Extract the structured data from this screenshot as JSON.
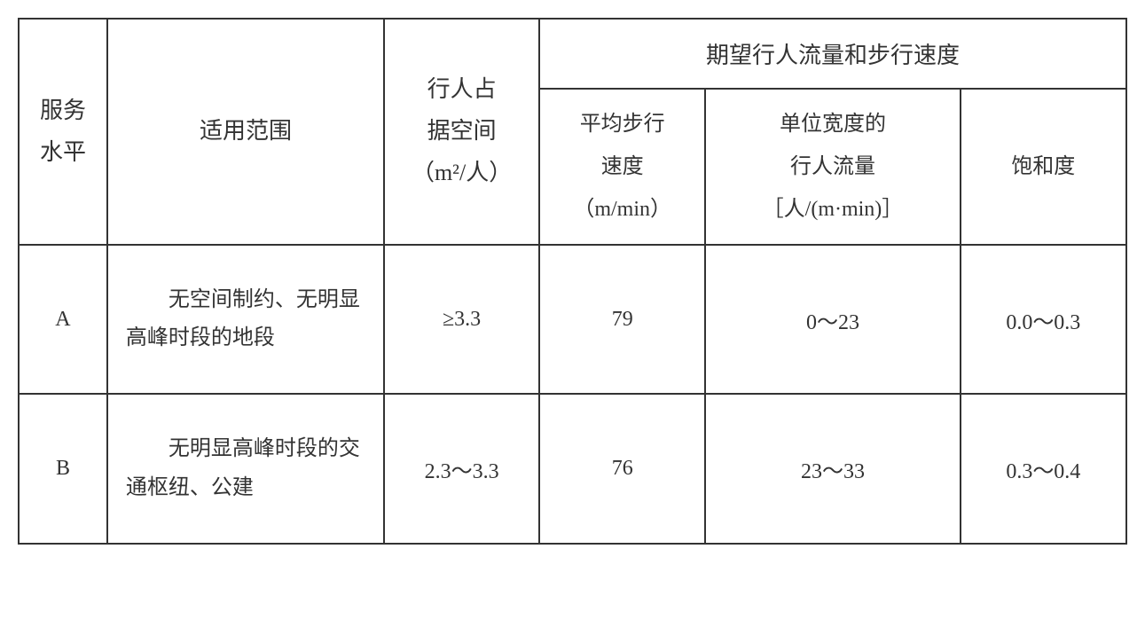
{
  "table": {
    "headers": {
      "service_level": "服务\n水平",
      "scope": "适用范围",
      "space": "行人占\n据空间\n（m²/人）",
      "group_header": "期望行人流量和步行速度",
      "speed": "平均步行\n速度\n（m/min）",
      "flow": "单位宽度的\n行人流量\n［人/(m·min)］",
      "saturation": "饱和度"
    },
    "rows": [
      {
        "level": "A",
        "scope": "无空间制约、无明显高峰时段的地段",
        "space": "≥3.3",
        "speed": "79",
        "flow": "0～23",
        "saturation": "0.0～0.3"
      },
      {
        "level": "B",
        "scope": "无明显高峰时段的交通枢纽、公建",
        "space": "2.3～3.3",
        "speed": "76",
        "flow": "23～33",
        "saturation": "0.3～0.4"
      }
    ],
    "styling": {
      "border_color": "#333333",
      "border_width": 2,
      "background_color": "#ffffff",
      "text_color": "#333333",
      "header_fontsize": 26,
      "data_fontsize": 24,
      "font_family": "SimSun"
    }
  }
}
